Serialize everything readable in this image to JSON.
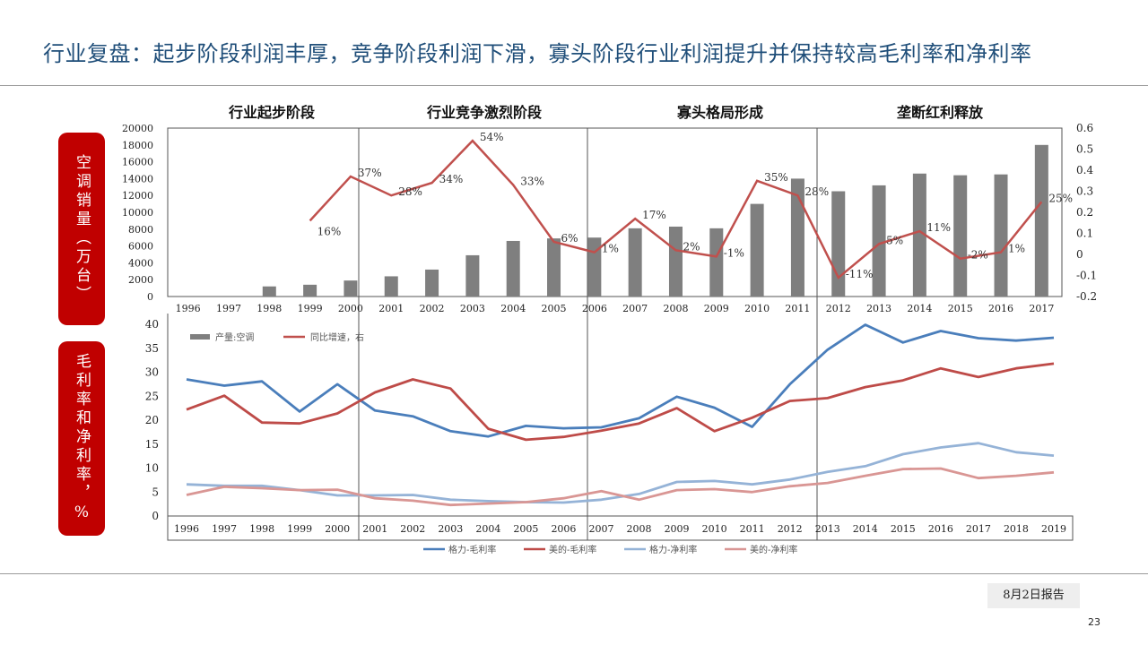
{
  "title": "行业复盘：起步阶段利润丰厚，竞争阶段利润下滑，寡头阶段行业利润提升并保持较高毛利率和净利率",
  "side_labels": {
    "top": "空调销量（万台）",
    "bottom": "毛利率和净利率，%"
  },
  "report_tag": "8月2日报告",
  "page_number": "23",
  "colors": {
    "title": "#1f4e79",
    "label_bg": "#c00000",
    "bar": "#7f7f7f",
    "red_line": "#c0504d",
    "gree_gross": "#4a7ebb",
    "midea_gross": "#be4b48",
    "gree_net": "#95b3d7",
    "midea_net": "#d99694"
  },
  "chart_data": [
    {
      "type": "bar",
      "phases": [
        "行业起步阶段",
        "行业竞争激烈阶段",
        "寡头格局形成",
        "垄断红利释放"
      ],
      "categories": [
        "1996",
        "1997",
        "1998",
        "1999",
        "2000",
        "2001",
        "2002",
        "2003",
        "2004",
        "2005",
        "2006",
        "2007",
        "2008",
        "2009",
        "2010",
        "2011",
        "2012",
        "2013",
        "2014",
        "2015",
        "2016",
        "2017"
      ],
      "series": [
        {
          "name": "产量:空调",
          "axis": "left",
          "values": [
            null,
            null,
            1200,
            1400,
            1900,
            2400,
            3200,
            4900,
            6600,
            6900,
            7000,
            8100,
            8300,
            8100,
            11000,
            14000,
            12500,
            13200,
            14600,
            14400,
            14500,
            18000
          ]
        },
        {
          "name": "同比增速，右",
          "axis": "right",
          "type": "line",
          "values": [
            null,
            null,
            null,
            0.16,
            0.37,
            0.28,
            0.34,
            0.54,
            0.33,
            0.06,
            0.01,
            0.17,
            0.02,
            -0.01,
            0.35,
            0.28,
            -0.11,
            0.05,
            0.11,
            -0.02,
            0.01,
            0.25
          ]
        }
      ],
      "data_labels": [
        "",
        "",
        "",
        "16%",
        "37%",
        "28%",
        "34%",
        "54%",
        "33%",
        "6%",
        "1%",
        "17%",
        "2%",
        "-1%",
        "35%",
        "28%",
        "-11%",
        "5%",
        "11%",
        "-2%",
        "1%",
        "25%"
      ],
      "ylim": [
        0,
        20000
      ],
      "yticks": [
        "0",
        "2000",
        "4000",
        "6000",
        "8000",
        "10000",
        "12000",
        "14000",
        "16000",
        "18000",
        "20000"
      ],
      "y2lim": [
        -0.2,
        0.6
      ],
      "y2ticks": [
        "-0.2",
        "-0.1",
        "0",
        "0.1",
        "0.2",
        "0.3",
        "0.4",
        "0.5",
        "0.6"
      ],
      "legend": "bottom-left"
    },
    {
      "type": "line",
      "categories": [
        "1996",
        "1997",
        "1998",
        "1999",
        "2000",
        "2001",
        "2002",
        "2003",
        "2004",
        "2005",
        "2006",
        "2007",
        "2008",
        "2009",
        "2010",
        "2011",
        "2012",
        "2013",
        "2014",
        "2015",
        "2016",
        "2017",
        "2018",
        "2019"
      ],
      "series": [
        {
          "name": "格力-毛利率",
          "values": [
            28.5,
            27.2,
            28.1,
            21.8,
            27.5,
            22.0,
            20.8,
            17.7,
            16.6,
            18.8,
            18.3,
            18.5,
            20.4,
            24.9,
            22.6,
            18.6,
            27.5,
            34.7,
            39.9,
            36.2,
            38.6,
            37.1,
            36.6,
            37.2
          ]
        },
        {
          "name": "美的-毛利率",
          "values": [
            22.2,
            25.1,
            19.5,
            19.3,
            21.4,
            25.8,
            28.5,
            26.6,
            18.2,
            15.9,
            16.5,
            17.8,
            19.3,
            22.5,
            17.7,
            20.5,
            24.0,
            24.6,
            26.9,
            28.3,
            30.8,
            29.0,
            30.8,
            31.8
          ]
        },
        {
          "name": "格力-净利率",
          "values": [
            6.6,
            6.3,
            6.3,
            5.4,
            4.3,
            4.3,
            4.4,
            3.4,
            3.1,
            2.9,
            2.8,
            3.4,
            4.6,
            7.1,
            7.3,
            6.6,
            7.6,
            9.2,
            10.4,
            12.9,
            14.3,
            15.2,
            13.3,
            12.6
          ]
        },
        {
          "name": "美的-净利率",
          "values": [
            4.4,
            6.1,
            5.8,
            5.4,
            5.5,
            3.7,
            3.2,
            2.3,
            2.6,
            2.9,
            3.7,
            5.2,
            3.4,
            5.4,
            5.6,
            5.0,
            6.2,
            6.9,
            8.4,
            9.8,
            9.9,
            7.9,
            8.4,
            9.1
          ]
        }
      ],
      "ylim": [
        0,
        40
      ],
      "yticks": [
        "0",
        "5",
        "10",
        "15",
        "20",
        "25",
        "30",
        "35",
        "40"
      ],
      "legend": "bottom"
    }
  ]
}
